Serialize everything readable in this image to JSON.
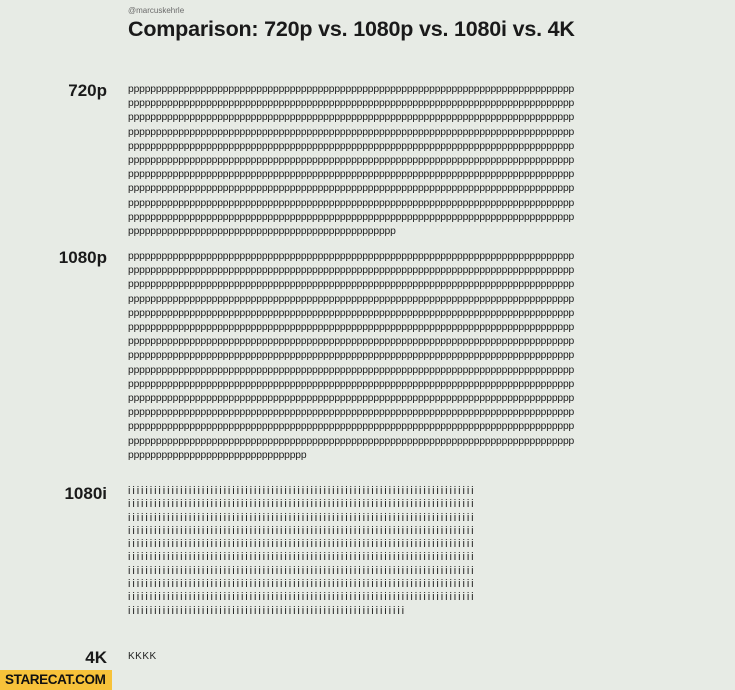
{
  "header": {
    "handle": "@marcuskehrle",
    "title": "Comparison: 720p vs. 1080p vs. 1080i vs. 4K"
  },
  "sections": [
    {
      "label": "720p",
      "char": "p",
      "full_lines": 10,
      "chars_per_line": 80,
      "last_line_chars": 48
    },
    {
      "label": "1080p",
      "char": "p",
      "full_lines": 14,
      "chars_per_line": 80,
      "last_line_chars": 32
    },
    {
      "label": "1080i",
      "char": "i",
      "full_lines": 9,
      "chars_per_line": 80,
      "last_line_chars": 64
    },
    {
      "label": "4K",
      "char": "K",
      "full_lines": 0,
      "chars_per_line": 80,
      "last_line_chars": 4
    }
  ],
  "watermark": "STARECAT.COM"
}
